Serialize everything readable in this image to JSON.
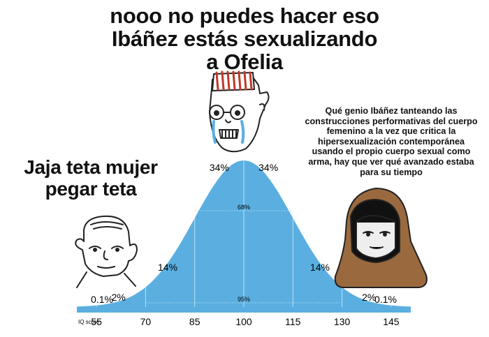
{
  "captions": {
    "top": "nooo no puedes hacer eso Ibáñez estás sexualizando a Ofelia",
    "left": "Jaja teta mujer pegar teta",
    "right": "Qué genio Ibáñez tanteando las construcciones performativas del cuerpo femenino a la vez que critica la hipersexualización contemporánea usando el propio cuerpo sexual como arma, hay que ver qué avanzado estaba para su tiempo"
  },
  "chart_data": {
    "type": "area",
    "xlabel": "IQ score",
    "x_ticks": [
      55,
      70,
      85,
      100,
      115,
      130,
      145
    ],
    "x_tick_labels": [
      "55",
      "70",
      "85",
      "100",
      "115",
      "130",
      "145"
    ],
    "band_percentages": [
      "0.1%",
      "2%",
      "14%",
      "34%",
      "34%",
      "14%",
      "2%",
      "0.1%"
    ],
    "inner_labels": [
      "68%",
      "95%"
    ],
    "mean": 100,
    "sd": 15,
    "fill_color": "#5aafe0",
    "axis_color": "#5aafe0",
    "tick_color": "#c0392b"
  },
  "characters": [
    "crying-wojak-face",
    "simple-wojak-face",
    "hooded-wojak-face"
  ]
}
